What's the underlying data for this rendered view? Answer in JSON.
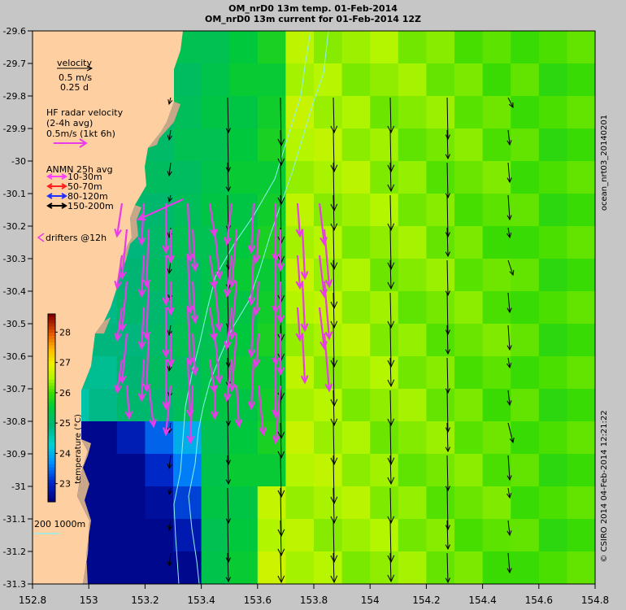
{
  "title_line1": "OM_nrD0 13m temp. 01-Feb-2014",
  "title_line2": "OM_nrD0 13m current for 01-Feb-2014 12Z",
  "x_ticks": [
    "152.8",
    "153",
    "153.2",
    "153.4",
    "153.6",
    "153.8",
    "154",
    "154.2",
    "154.4",
    "154.6",
    "154.8"
  ],
  "y_ticks": [
    "-29.6",
    "-29.7",
    "-29.8",
    "-29.9",
    "-30",
    "-30.1",
    "-30.2",
    "-30.3",
    "-30.4",
    "-30.5",
    "-30.6",
    "-30.7",
    "-30.8",
    "-30.9",
    "-31",
    "-31.1",
    "-31.2",
    "-31.3"
  ],
  "legend": {
    "velocity_label": "velocity",
    "velocity_scale_1": "0.5 m/s",
    "velocity_scale_2": "0.25 d",
    "hf_label_1": "HF radar velocity",
    "hf_label_2": "(2-4h avg)",
    "hf_label_3": "0.5m/s (1kt 6h)",
    "anmn_title": "ANMN 25h avg",
    "anmn_items": [
      {
        "label": "10-30m",
        "color": "#ff40ff"
      },
      {
        "label": "50-70m",
        "color": "#ff2020"
      },
      {
        "label": "80-120m",
        "color": "#2030ff"
      },
      {
        "label": "150-200m",
        "color": "#000000"
      }
    ],
    "drifters_label": "drifters @12h"
  },
  "colorbar": {
    "label": "temperature (°C)",
    "ticks": [
      "28",
      "27",
      "26",
      "25",
      "24",
      "23"
    ],
    "range": [
      22.4,
      28.6
    ]
  },
  "bathy_label": "200  1000m",
  "side_text_top": "ocean_nrt03_20140201",
  "side_text_bottom": "© CSIRO 2014   04-Feb-2014 12:21:22",
  "colors": {
    "land": "#fecfa0",
    "coast": "#c8a68a",
    "hf_arrow": "#e83ce8",
    "isobath": "#90f0f0"
  }
}
